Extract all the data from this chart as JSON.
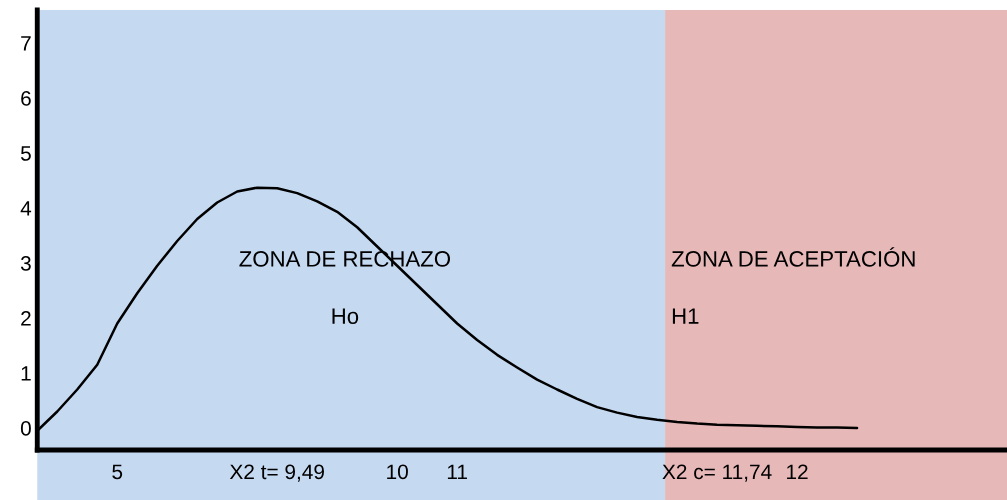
{
  "chart_data": {
    "type": "line",
    "categories": [
      null,
      null,
      null,
      null,
      "5",
      null,
      null,
      null,
      null,
      null,
      null,
      null,
      "X2 t= 9,49",
      null,
      null,
      null,
      null,
      null,
      "10",
      null,
      null,
      "11",
      null,
      null,
      null,
      null,
      null,
      null,
      null,
      null,
      null,
      null,
      null,
      null,
      "X2 c= 11,74",
      null,
      null,
      null,
      "12",
      null,
      null,
      null,
      null,
      null,
      null,
      null,
      null,
      null,
      null
    ],
    "series": [
      {
        "color": "#000000",
        "values": [
          -0.05,
          0.3,
          0.7,
          1.15,
          1.9,
          2.45,
          2.95,
          3.4,
          3.8,
          4.1,
          4.3,
          4.37,
          4.36,
          4.27,
          4.12,
          3.93,
          3.65,
          3.3,
          2.95,
          2.6,
          2.25,
          1.9,
          1.6,
          1.33,
          1.1,
          0.88,
          0.7,
          0.53,
          0.38,
          0.28,
          0.2,
          0.15,
          0.11,
          0.08,
          0.06,
          0.05,
          0.04,
          0.03,
          0.02,
          0.01,
          0.01,
          0,
          null,
          null,
          null,
          null,
          null,
          null,
          null
        ]
      }
    ],
    "ylim": [
      -0.4,
      7.6
    ],
    "yticks": [
      0,
      1,
      2,
      3,
      4,
      5,
      6,
      7
    ],
    "annotations": [
      "ZONA DE RECHAZO",
      "Ho",
      "ZONA DE ACEPTACIÓN",
      "H1"
    ],
    "marker": "none",
    "line_style": "solid",
    "grid": false,
    "legend": false
  }
}
